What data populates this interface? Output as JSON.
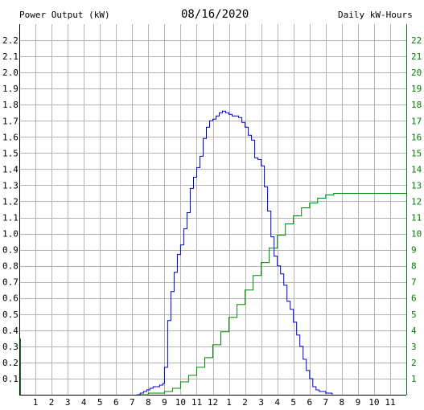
{
  "chart_data": {
    "type": "line",
    "date": "08/16/2020",
    "left_axis_label": "Power Output (kW)",
    "right_axis_label": "Daily kW-Hours",
    "x_tick_labels": [
      "1",
      "2",
      "3",
      "4",
      "5",
      "6",
      "7",
      "8",
      "9",
      "10",
      "11",
      "12",
      "1",
      "2",
      "3",
      "4",
      "5",
      "6",
      "7",
      "8",
      "9",
      "10",
      "11"
    ],
    "left_ticks": [
      "0.1",
      "0.2",
      "0.3",
      "0.4",
      "0.5",
      "0.6",
      "0.7",
      "0.8",
      "0.9",
      "1.0",
      "1.1",
      "1.2",
      "1.3",
      "1.4",
      "1.5",
      "1.6",
      "1.7",
      "1.8",
      "1.9",
      "2.0",
      "2.1",
      "2.2"
    ],
    "right_ticks": [
      "1",
      "2",
      "3",
      "4",
      "5",
      "6",
      "7",
      "8",
      "9",
      "10",
      "11",
      "12",
      "13",
      "14",
      "15",
      "16",
      "17",
      "18",
      "19",
      "20",
      "21",
      "22"
    ],
    "xlim": [
      0,
      24
    ],
    "ylim_left": [
      0,
      2.3
    ],
    "ylim_right": [
      0,
      23
    ],
    "grid": true,
    "colors": {
      "power": "#0000cc",
      "energy": "#008800",
      "grid": "#b4b4b4",
      "left_axis": "#000000",
      "right_axis": "#008000",
      "left_header": "#0000aa",
      "right_header": "#008000"
    },
    "series": [
      {
        "name": "Power Output (kW)",
        "axis": "left",
        "points": [
          [
            7.3,
            0.0
          ],
          [
            7.5,
            0.01
          ],
          [
            7.7,
            0.02
          ],
          [
            7.9,
            0.03
          ],
          [
            8.1,
            0.04
          ],
          [
            8.3,
            0.05
          ],
          [
            8.5,
            0.05
          ],
          [
            8.7,
            0.06
          ],
          [
            8.9,
            0.07
          ],
          [
            9.0,
            0.17
          ],
          [
            9.2,
            0.46
          ],
          [
            9.4,
            0.64
          ],
          [
            9.6,
            0.76
          ],
          [
            9.8,
            0.87
          ],
          [
            10.0,
            0.93
          ],
          [
            10.2,
            1.03
          ],
          [
            10.4,
            1.13
          ],
          [
            10.6,
            1.28
          ],
          [
            10.8,
            1.35
          ],
          [
            11.0,
            1.41
          ],
          [
            11.2,
            1.48
          ],
          [
            11.4,
            1.59
          ],
          [
            11.6,
            1.66
          ],
          [
            11.8,
            1.7
          ],
          [
            12.0,
            1.71
          ],
          [
            12.2,
            1.73
          ],
          [
            12.4,
            1.75
          ],
          [
            12.6,
            1.76
          ],
          [
            12.8,
            1.75
          ],
          [
            13.0,
            1.74
          ],
          [
            13.2,
            1.73
          ],
          [
            13.4,
            1.73
          ],
          [
            13.6,
            1.72
          ],
          [
            13.8,
            1.69
          ],
          [
            14.0,
            1.66
          ],
          [
            14.2,
            1.61
          ],
          [
            14.4,
            1.58
          ],
          [
            14.6,
            1.47
          ],
          [
            14.8,
            1.46
          ],
          [
            15.0,
            1.42
          ],
          [
            15.2,
            1.29
          ],
          [
            15.4,
            1.14
          ],
          [
            15.6,
            0.98
          ],
          [
            15.8,
            0.86
          ],
          [
            16.0,
            0.8
          ],
          [
            16.2,
            0.75
          ],
          [
            16.4,
            0.68
          ],
          [
            16.6,
            0.58
          ],
          [
            16.8,
            0.53
          ],
          [
            17.0,
            0.45
          ],
          [
            17.2,
            0.37
          ],
          [
            17.4,
            0.3
          ],
          [
            17.6,
            0.22
          ],
          [
            17.8,
            0.15
          ],
          [
            18.0,
            0.1
          ],
          [
            18.2,
            0.05
          ],
          [
            18.4,
            0.03
          ],
          [
            18.6,
            0.02
          ],
          [
            19.0,
            0.01
          ],
          [
            19.4,
            0.0
          ]
        ]
      },
      {
        "name": "Daily kW-Hours",
        "axis": "right",
        "points": [
          [
            7.3,
            0.0
          ],
          [
            8.0,
            0.1
          ],
          [
            9.0,
            0.2
          ],
          [
            9.5,
            0.4
          ],
          [
            10.0,
            0.8
          ],
          [
            10.5,
            1.2
          ],
          [
            11.0,
            1.7
          ],
          [
            11.5,
            2.3
          ],
          [
            12.0,
            3.1
          ],
          [
            12.5,
            3.9
          ],
          [
            13.0,
            4.8
          ],
          [
            13.5,
            5.6
          ],
          [
            14.0,
            6.5
          ],
          [
            14.5,
            7.4
          ],
          [
            15.0,
            8.2
          ],
          [
            15.5,
            9.1
          ],
          [
            16.0,
            9.9
          ],
          [
            16.5,
            10.6
          ],
          [
            17.0,
            11.1
          ],
          [
            17.5,
            11.6
          ],
          [
            18.0,
            11.9
          ],
          [
            18.5,
            12.2
          ],
          [
            19.0,
            12.4
          ],
          [
            19.5,
            12.5
          ],
          [
            20.0,
            12.5
          ],
          [
            24.0,
            12.5
          ]
        ]
      }
    ]
  }
}
